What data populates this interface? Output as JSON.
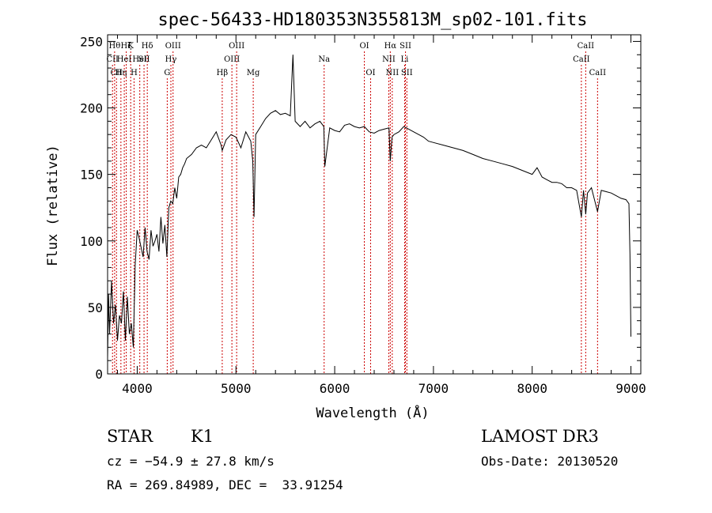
{
  "chart_data": {
    "type": "line",
    "title": "spec-56433-HD180353N355813M_sp02-101.fits",
    "xlabel": "Wavelength (Å)",
    "ylabel": "Flux (relative)",
    "xlim": [
      3700,
      9100
    ],
    "ylim": [
      0,
      255
    ],
    "xticks": [
      4000,
      5000,
      6000,
      7000,
      8000,
      9000
    ],
    "yticks": [
      0,
      50,
      100,
      150,
      200,
      250
    ],
    "grid": false,
    "series": [
      {
        "x": [
          3700,
          3710,
          3720,
          3740,
          3760,
          3780,
          3800,
          3820,
          3840,
          3860,
          3880,
          3900,
          3920,
          3940,
          3960,
          3980,
          4000,
          4020,
          4040,
          4060,
          4080,
          4100,
          4120,
          4140,
          4160,
          4180,
          4200,
          4220,
          4240,
          4260,
          4280,
          4300,
          4320,
          4340,
          4360,
          4380,
          4400,
          4420,
          4440,
          4460,
          4480,
          4500,
          4550,
          4600,
          4650,
          4700,
          4750,
          4800,
          4850,
          4861,
          4900,
          4950,
          5000,
          5050,
          5100,
          5150,
          5170,
          5183,
          5200,
          5250,
          5300,
          5350,
          5400,
          5450,
          5500,
          5550,
          5577,
          5600,
          5650,
          5700,
          5750,
          5800,
          5850,
          5890,
          5900,
          5950,
          6000,
          6050,
          6100,
          6150,
          6200,
          6250,
          6300,
          6350,
          6400,
          6450,
          6500,
          6550,
          6563,
          6580,
          6600,
          6650,
          6700,
          6750,
          6800,
          6850,
          6900,
          6950,
          7000,
          7100,
          7200,
          7300,
          7400,
          7500,
          7600,
          7700,
          7800,
          7900,
          8000,
          8050,
          8100,
          8150,
          8200,
          8250,
          8300,
          8350,
          8400,
          8450,
          8498,
          8520,
          8542,
          8560,
          8600,
          8662,
          8700,
          8750,
          8800,
          8850,
          8900,
          8950,
          8980,
          8990,
          9000
        ],
        "y": [
          12,
          60,
          30,
          70,
          38,
          52,
          25,
          44,
          38,
          62,
          25,
          58,
          30,
          38,
          20,
          82,
          108,
          102,
          95,
          88,
          110,
          92,
          86,
          108,
          96,
          100,
          105,
          92,
          118,
          98,
          112,
          88,
          125,
          130,
          128,
          140,
          132,
          148,
          150,
          155,
          158,
          162,
          165,
          170,
          172,
          170,
          176,
          182,
          172,
          168,
          176,
          180,
          178,
          170,
          182,
          175,
          160,
          118,
          180,
          186,
          192,
          196,
          198,
          195,
          196,
          194,
          240,
          190,
          186,
          190,
          185,
          188,
          190,
          186,
          156,
          185,
          183,
          182,
          187,
          188,
          186,
          185,
          186,
          182,
          181,
          183,
          184,
          185,
          160,
          178,
          180,
          182,
          186,
          184,
          182,
          180,
          178,
          175,
          174,
          172,
          170,
          168,
          165,
          162,
          160,
          158,
          156,
          153,
          150,
          155,
          148,
          146,
          144,
          144,
          143,
          140,
          140,
          138,
          118,
          138,
          120,
          136,
          140,
          122,
          138,
          137,
          136,
          134,
          132,
          131,
          128,
          90,
          28
        ]
      }
    ],
    "line_markers": [
      {
        "x": 3750,
        "label": "CII",
        "row": 2
      },
      {
        "x": 3771,
        "label": "Hθ",
        "row": 1
      },
      {
        "x": 3790,
        "label": "CII",
        "row": 3
      },
      {
        "x": 3835,
        "label": "Hη",
        "row": 3
      },
      {
        "x": 3869,
        "label": "HeI",
        "row": 2
      },
      {
        "x": 3889,
        "label": "Hζ",
        "row": 1
      },
      {
        "x": 3934,
        "label": "K",
        "row": 1
      },
      {
        "x": 3968,
        "label": "H",
        "row": 3
      },
      {
        "x": 4026,
        "label": "HeI",
        "row": 2
      },
      {
        "x": 4069,
        "label": "SII",
        "row": 2
      },
      {
        "x": 4102,
        "label": "Hδ",
        "row": 1
      },
      {
        "x": 4304,
        "label": "G",
        "row": 3
      },
      {
        "x": 4341,
        "label": "Hγ",
        "row": 2
      },
      {
        "x": 4363,
        "label": "OIII",
        "row": 1
      },
      {
        "x": 4861,
        "label": "Hβ",
        "row": 3
      },
      {
        "x": 4959,
        "label": "OIII",
        "row": 2
      },
      {
        "x": 5007,
        "label": "OIII",
        "row": 1
      },
      {
        "x": 5175,
        "label": "Mg",
        "row": 3
      },
      {
        "x": 5893,
        "label": "Na",
        "row": 2
      },
      {
        "x": 6300,
        "label": "OI",
        "row": 1
      },
      {
        "x": 6364,
        "label": "OI",
        "row": 3
      },
      {
        "x": 6548,
        "label": "NII",
        "row": 2
      },
      {
        "x": 6563,
        "label": "Hα",
        "row": 1
      },
      {
        "x": 6583,
        "label": "NII",
        "row": 3
      },
      {
        "x": 6708,
        "label": "Li",
        "row": 2
      },
      {
        "x": 6717,
        "label": "SII",
        "row": 1
      },
      {
        "x": 6731,
        "label": "SII",
        "row": 3
      },
      {
        "x": 8498,
        "label": "CaII",
        "row": 2
      },
      {
        "x": 8542,
        "label": "CaII",
        "row": 1
      },
      {
        "x": 8662,
        "label": "CaII",
        "row": 3
      }
    ],
    "colors": {
      "spectrum": "#000000",
      "markers": "#cc0000",
      "axes": "#000000"
    }
  },
  "info": {
    "class": "STAR",
    "subclass": "K1",
    "survey": "LAMOST DR3",
    "cz": "cz = −54.9 ± 27.8 km/s",
    "obs_date": "Obs-Date: 20130520",
    "radec": "RA = 269.84989, DEC =  33.91254"
  }
}
